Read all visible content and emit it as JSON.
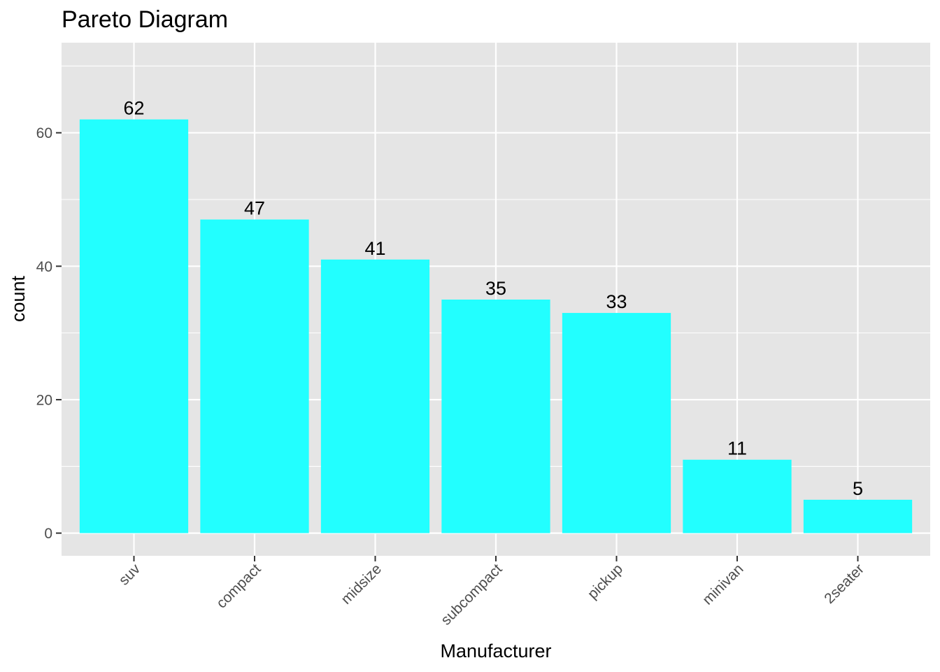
{
  "chart_data": {
    "type": "bar",
    "title": "Pareto Diagram",
    "xlabel": "Manufacturer",
    "ylabel": "count",
    "categories": [
      "suv",
      "compact",
      "midsize",
      "subcompact",
      "pickup",
      "minivan",
      "2seater"
    ],
    "values": [
      62,
      47,
      41,
      35,
      33,
      11,
      5
    ],
    "data_labels": [
      "62",
      "47",
      "41",
      "35",
      "33",
      "11",
      "5"
    ],
    "yticks": [
      0,
      20,
      40,
      60
    ],
    "ytick_labels": [
      "0",
      "20",
      "40",
      "60"
    ],
    "ylim": [
      -3.4,
      73.5
    ],
    "grid": true,
    "legend": "none",
    "colors": {
      "bar": "#22ffff",
      "panel": "#e5e5e5",
      "grid": "#ffffff",
      "tick_text": "#4d4d4d",
      "tick_mark": "#333333"
    }
  }
}
